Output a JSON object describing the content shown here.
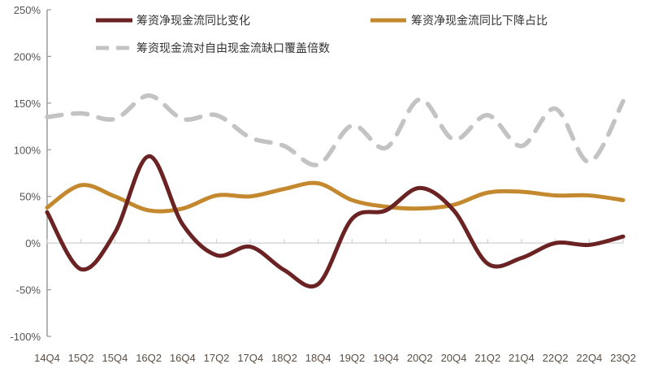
{
  "chart_data": {
    "type": "line",
    "title": "",
    "xlabel": "",
    "ylabel": "",
    "ylim": [
      -100,
      250
    ],
    "y_ticks": [
      "250%",
      "200%",
      "150%",
      "100%",
      "50%",
      "0%",
      "-50%",
      "-100%"
    ],
    "y_tick_values": [
      250,
      200,
      150,
      100,
      50,
      0,
      -50,
      -100
    ],
    "categories": [
      "14Q4",
      "15Q2",
      "15Q4",
      "16Q2",
      "16Q4",
      "17Q2",
      "17Q4",
      "18Q2",
      "18Q4",
      "19Q2",
      "19Q4",
      "20Q2",
      "20Q4",
      "21Q2",
      "21Q4",
      "22Q2",
      "22Q4",
      "23Q2"
    ],
    "grid": false,
    "legend_placement": "top",
    "smooth": true,
    "series": [
      {
        "name": "筹资净现金流同比变化",
        "color": "#6b2222",
        "dash": false,
        "values": [
          33,
          -28,
          11,
          93,
          20,
          -13,
          -4,
          -29,
          -44,
          26,
          35,
          59,
          35,
          -22,
          -16,
          0,
          -2,
          7
        ]
      },
      {
        "name": "筹资净现金流同比下降占比",
        "color": "#c4892f",
        "dash": false,
        "values": [
          38,
          62,
          50,
          35,
          37,
          51,
          50,
          58,
          64,
          46,
          39,
          37,
          41,
          54,
          55,
          51,
          51,
          46
        ]
      },
      {
        "name": "筹资现金流对自由现金流缺口覆盖倍数",
        "color": "#c3c3c3",
        "dash": true,
        "values": [
          135,
          139,
          133,
          158,
          133,
          137,
          113,
          104,
          84,
          126,
          102,
          154,
          111,
          137,
          104,
          144,
          87,
          152
        ]
      }
    ]
  }
}
